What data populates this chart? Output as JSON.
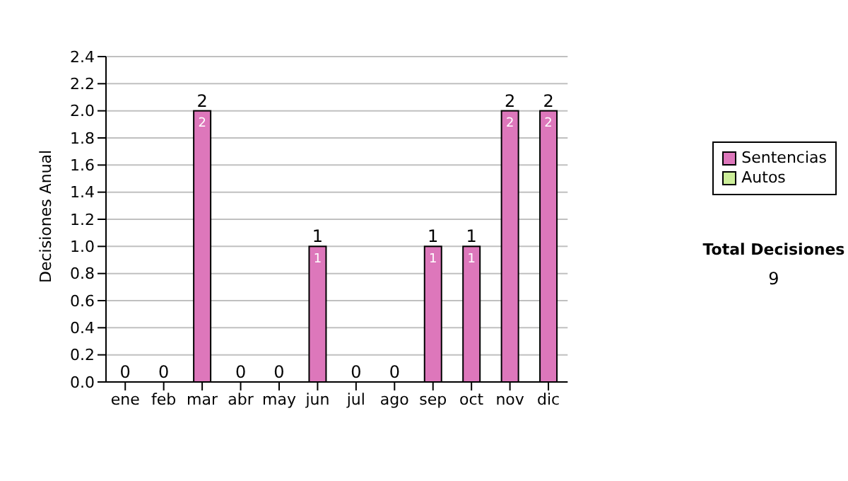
{
  "chart_data": {
    "type": "bar",
    "ylabel": "Decisiones Anual",
    "categories": [
      "ene",
      "feb",
      "mar",
      "abr",
      "may",
      "jun",
      "jul",
      "ago",
      "sep",
      "oct",
      "nov",
      "dic"
    ],
    "series": [
      {
        "name": "Sentencias",
        "color": "#dd77bb",
        "values": [
          0,
          0,
          2,
          0,
          0,
          1,
          0,
          0,
          1,
          1,
          2,
          2
        ],
        "value_labels": [
          null,
          null,
          "2",
          null,
          null,
          "1",
          null,
          null,
          "1",
          "1",
          "2",
          "2"
        ]
      },
      {
        "name": "Autos",
        "color": "#ccee99",
        "values": [
          0,
          0,
          0,
          0,
          0,
          0,
          0,
          0,
          0,
          0,
          0,
          0
        ]
      }
    ],
    "stacked": true,
    "totals": [
      "0",
      "0",
      "2",
      "0",
      "0",
      "1",
      "0",
      "0",
      "1",
      "1",
      "2",
      "2"
    ],
    "ylim": [
      0,
      2.4
    ],
    "yticks": [
      {
        "value": 0,
        "label": "0.0"
      },
      {
        "value": 0.2,
        "label": "0.2"
      },
      {
        "value": 0.4,
        "label": "0.4"
      },
      {
        "value": 0.6,
        "label": "0.6"
      },
      {
        "value": 0.8,
        "label": "0.8"
      },
      {
        "value": 1,
        "label": "1.0"
      },
      {
        "value": 1.2,
        "label": "1.2"
      },
      {
        "value": 1.4,
        "label": "1.4"
      },
      {
        "value": 1.6,
        "label": "1.6"
      },
      {
        "value": 1.8,
        "label": "1.8"
      },
      {
        "value": 2,
        "label": "2.0"
      },
      {
        "value": 2.2,
        "label": "2.2"
      },
      {
        "value": 2.4,
        "label": "2.4"
      }
    ],
    "grid": "y",
    "legend": "right",
    "annotations": [
      "Total Decisiones",
      "9"
    ]
  }
}
